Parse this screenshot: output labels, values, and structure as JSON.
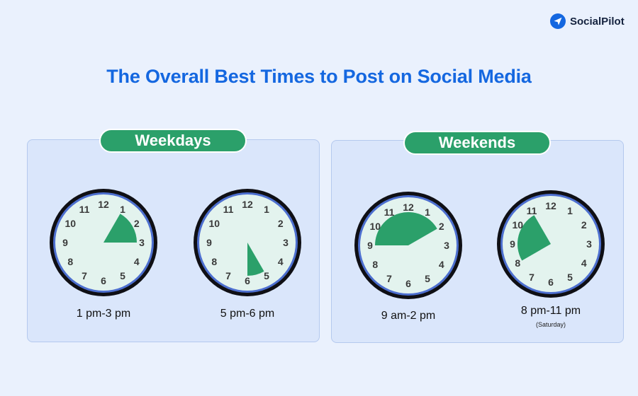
{
  "brand": {
    "name": "SocialPilot",
    "color": "#1467e0"
  },
  "title": "The Overall Best Times to Post on Social Media",
  "colors": {
    "title": "#1467e0",
    "pill": "#2ba06a",
    "wedge": "#2ba06a",
    "face": "#e3f3ee",
    "panel": "#dae6fb"
  },
  "groups": [
    {
      "label": "Weekdays",
      "clocks": [
        {
          "label": "1 pm-3 pm",
          "start_hour": 1,
          "end_hour": 3,
          "note": ""
        },
        {
          "label": "5 pm-6 pm",
          "start_hour": 5,
          "end_hour": 6,
          "note": ""
        }
      ]
    },
    {
      "label": "Weekends",
      "clocks": [
        {
          "label": "9 am-2 pm",
          "start_hour": 9,
          "end_hour": 14,
          "note": ""
        },
        {
          "label": "8 pm-11 pm",
          "start_hour": 8,
          "end_hour": 11,
          "note": "(Saturday)"
        }
      ]
    }
  ],
  "dial_numbers": [
    "12",
    "1",
    "2",
    "3",
    "4",
    "5",
    "6",
    "7",
    "8",
    "9",
    "10",
    "11"
  ]
}
